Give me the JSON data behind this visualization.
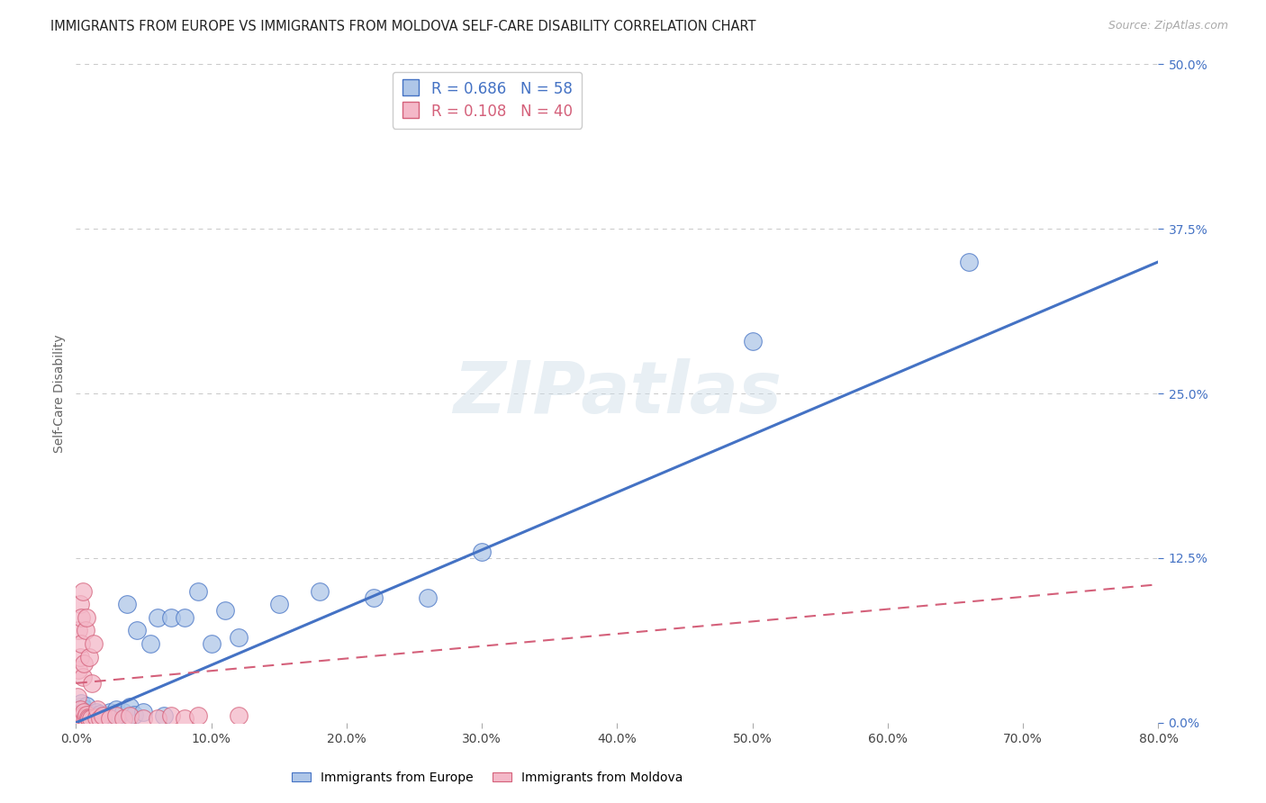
{
  "title": "IMMIGRANTS FROM EUROPE VS IMMIGRANTS FROM MOLDOVA SELF-CARE DISABILITY CORRELATION CHART",
  "source": "Source: ZipAtlas.com",
  "ylabel": "Self-Care Disability",
  "xlabel": "",
  "legend1_label": "Immigrants from Europe",
  "legend2_label": "Immigrants from Moldova",
  "R1": 0.686,
  "N1": 58,
  "R2": 0.108,
  "N2": 40,
  "color1": "#aec6e8",
  "color1_line": "#4472c4",
  "color2": "#f4b8c8",
  "color2_line": "#d4607a",
  "xlim": [
    0.0,
    0.8
  ],
  "ylim": [
    0.0,
    0.5
  ],
  "xtick_vals": [
    0.0,
    0.1,
    0.2,
    0.3,
    0.4,
    0.5,
    0.6,
    0.7,
    0.8
  ],
  "ytick_vals": [
    0.0,
    0.125,
    0.25,
    0.375,
    0.5
  ],
  "blue_x": [
    0.001,
    0.001,
    0.002,
    0.002,
    0.003,
    0.003,
    0.003,
    0.004,
    0.004,
    0.004,
    0.005,
    0.005,
    0.005,
    0.006,
    0.006,
    0.007,
    0.007,
    0.008,
    0.008,
    0.009,
    0.01,
    0.01,
    0.011,
    0.012,
    0.013,
    0.015,
    0.016,
    0.017,
    0.018,
    0.02,
    0.022,
    0.024,
    0.025,
    0.027,
    0.03,
    0.032,
    0.035,
    0.038,
    0.04,
    0.043,
    0.045,
    0.05,
    0.055,
    0.06,
    0.065,
    0.07,
    0.08,
    0.09,
    0.1,
    0.11,
    0.12,
    0.15,
    0.18,
    0.22,
    0.26,
    0.3,
    0.5,
    0.66
  ],
  "blue_y": [
    0.005,
    0.008,
    0.003,
    0.01,
    0.004,
    0.006,
    0.012,
    0.003,
    0.007,
    0.015,
    0.002,
    0.005,
    0.009,
    0.004,
    0.011,
    0.003,
    0.008,
    0.005,
    0.013,
    0.004,
    0.003,
    0.007,
    0.005,
    0.004,
    0.006,
    0.008,
    0.005,
    0.003,
    0.007,
    0.005,
    0.004,
    0.006,
    0.008,
    0.005,
    0.01,
    0.006,
    0.008,
    0.09,
    0.012,
    0.006,
    0.07,
    0.008,
    0.06,
    0.08,
    0.005,
    0.08,
    0.08,
    0.1,
    0.06,
    0.085,
    0.065,
    0.09,
    0.1,
    0.095,
    0.095,
    0.13,
    0.29,
    0.35
  ],
  "pink_x": [
    0.001,
    0.001,
    0.002,
    0.002,
    0.002,
    0.003,
    0.003,
    0.003,
    0.004,
    0.004,
    0.004,
    0.005,
    0.005,
    0.005,
    0.006,
    0.006,
    0.007,
    0.007,
    0.008,
    0.008,
    0.009,
    0.01,
    0.01,
    0.011,
    0.012,
    0.013,
    0.015,
    0.016,
    0.018,
    0.02,
    0.025,
    0.03,
    0.035,
    0.04,
    0.05,
    0.06,
    0.07,
    0.08,
    0.09,
    0.12
  ],
  "pink_y": [
    0.005,
    0.02,
    0.003,
    0.04,
    0.07,
    0.01,
    0.05,
    0.09,
    0.003,
    0.06,
    0.08,
    0.005,
    0.035,
    0.1,
    0.008,
    0.045,
    0.004,
    0.07,
    0.006,
    0.08,
    0.004,
    0.003,
    0.05,
    0.003,
    0.03,
    0.06,
    0.004,
    0.01,
    0.003,
    0.005,
    0.003,
    0.005,
    0.003,
    0.005,
    0.003,
    0.003,
    0.005,
    0.003,
    0.005,
    0.005
  ],
  "blue_line_x0": 0.0,
  "blue_line_x1": 0.8,
  "blue_line_y0": 0.0,
  "blue_line_y1": 0.35,
  "pink_line_x0": 0.0,
  "pink_line_x1": 0.8,
  "pink_line_y0": 0.03,
  "pink_line_y1": 0.105,
  "watermark": "ZIPatlas",
  "background_color": "#ffffff",
  "grid_color": "#c8c8c8"
}
